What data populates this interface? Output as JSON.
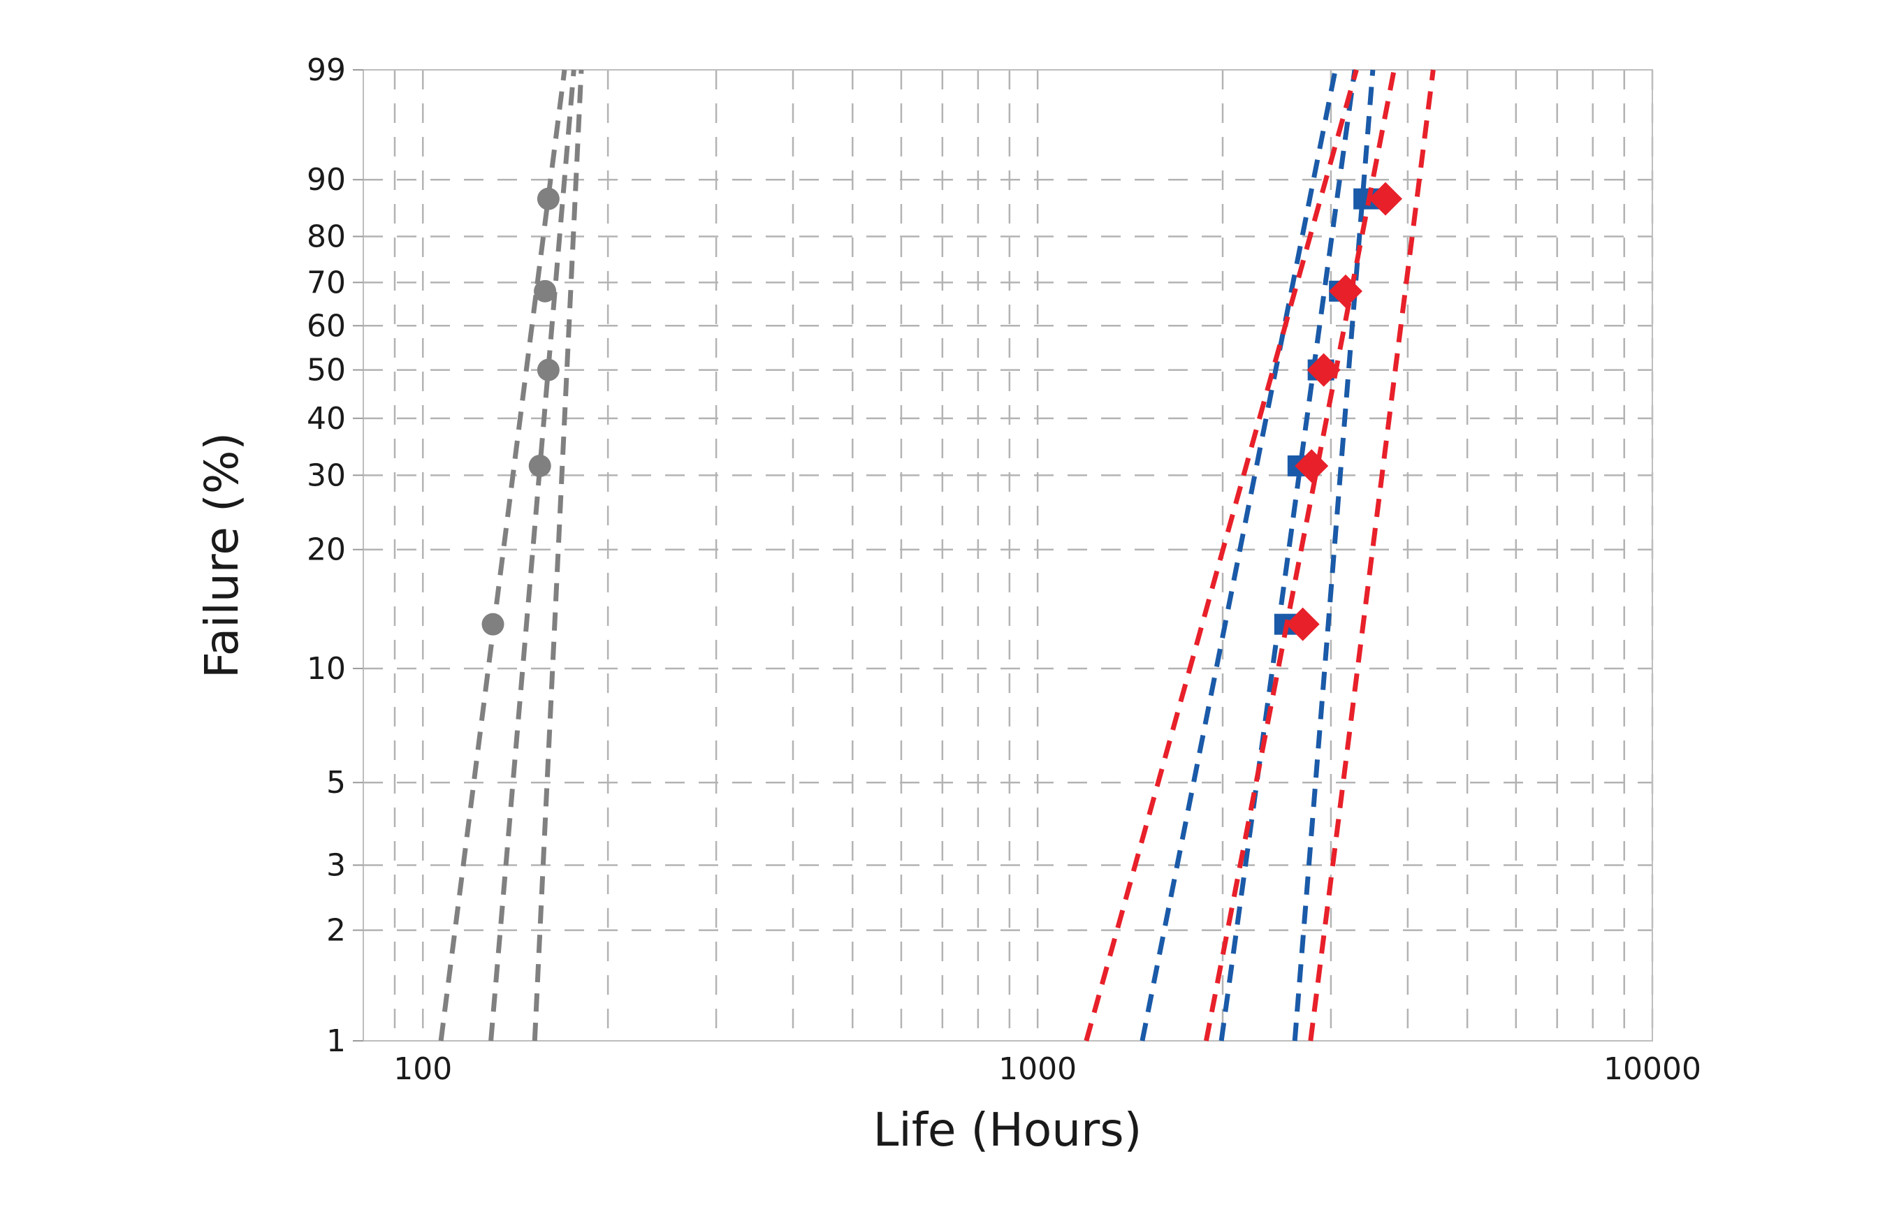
{
  "chart_data": {
    "type": "scatter",
    "title": "",
    "xlabel": "Life (Hours)",
    "ylabel": "Failure (%)",
    "x_scale": "log",
    "y_scale": "weibull-probability",
    "xlim": [
      80,
      10000
    ],
    "ylim": [
      1,
      99
    ],
    "x_ticks": [
      100,
      1000,
      10000
    ],
    "x_tick_labels": [
      "100",
      "1000",
      "10000"
    ],
    "y_ticks": [
      1,
      2,
      3,
      5,
      10,
      20,
      30,
      40,
      50,
      60,
      70,
      80,
      90,
      99
    ],
    "y_tick_labels": [
      "1",
      "2",
      "3",
      "5",
      "10",
      "20",
      "30",
      "40",
      "50",
      "60",
      "70",
      "80",
      "90",
      "99"
    ],
    "grid": true,
    "legend": "none",
    "colors": {
      "gray": "#808080",
      "blue": "#1a5aa8",
      "red": "#e8202a",
      "grid": "#b3b3b3",
      "frame": "#bdbdbd"
    },
    "series": [
      {
        "color": "#808080",
        "marker": "circle",
        "points": [
          {
            "x": 130,
            "y": 13
          },
          {
            "x": 155,
            "y": 31.5
          },
          {
            "x": 160,
            "y": 50
          },
          {
            "x": 158,
            "y": 68
          },
          {
            "x": 160,
            "y": 87
          }
        ],
        "bounds": [
          [
            {
              "x": 107,
              "y": 1
            },
            {
              "x": 170,
              "y": 99
            }
          ],
          [
            {
              "x": 129,
              "y": 1
            },
            {
              "x": 176,
              "y": 99
            }
          ],
          [
            {
              "x": 152,
              "y": 1
            },
            {
              "x": 181,
              "y": 99
            }
          ]
        ]
      },
      {
        "color": "#1a5aa8",
        "marker": "square",
        "points": [
          {
            "x": 2550,
            "y": 13
          },
          {
            "x": 2680,
            "y": 31.5
          },
          {
            "x": 2890,
            "y": 50
          },
          {
            "x": 3130,
            "y": 68
          },
          {
            "x": 3430,
            "y": 87
          }
        ],
        "bounds": [
          [
            {
              "x": 1480,
              "y": 1
            },
            {
              "x": 3050,
              "y": 99
            }
          ],
          [
            {
              "x": 1990,
              "y": 1
            },
            {
              "x": 3280,
              "y": 99
            }
          ],
          [
            {
              "x": 2620,
              "y": 1
            },
            {
              "x": 3510,
              "y": 99
            }
          ]
        ]
      },
      {
        "color": "#e8202a",
        "marker": "diamond",
        "points": [
          {
            "x": 2700,
            "y": 13
          },
          {
            "x": 2790,
            "y": 31.5
          },
          {
            "x": 2920,
            "y": 50
          },
          {
            "x": 3170,
            "y": 68
          },
          {
            "x": 3680,
            "y": 87
          }
        ],
        "bounds": [
          [
            {
              "x": 1200,
              "y": 1
            },
            {
              "x": 3300,
              "y": 99
            }
          ],
          [
            {
              "x": 1880,
              "y": 1
            },
            {
              "x": 3800,
              "y": 99
            }
          ],
          [
            {
              "x": 2780,
              "y": 1
            },
            {
              "x": 4400,
              "y": 99
            }
          ]
        ]
      }
    ]
  }
}
